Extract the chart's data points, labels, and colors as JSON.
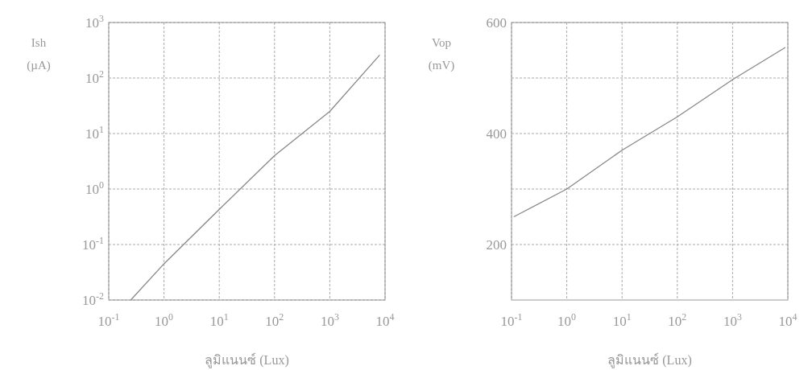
{
  "chart_data": [
    {
      "type": "line",
      "xlabel": "ลูมิแนนซ์ (Lux)",
      "ylabel": "Ish (µA)",
      "log": "xy",
      "grid": true,
      "line_style": "solid",
      "marker": "none",
      "x": [
        0.25,
        1,
        10,
        100,
        1000,
        8000
      ],
      "series": [
        {
          "color": "#888888",
          "values": [
            0.01,
            0.045,
            0.43,
            4,
            25,
            260
          ]
        }
      ],
      "xlim": [
        0.1,
        10000
      ],
      "xticks": [
        {
          "value": 0.1,
          "label": "10$^{-1}$"
        },
        {
          "value": 1,
          "label": "10$^{0}$"
        },
        {
          "value": 10,
          "label": "10$^{1}$"
        },
        {
          "value": 100,
          "label": "10$^{2}$"
        },
        {
          "value": 1000,
          "label": "10$^{3}$"
        },
        {
          "value": 10000,
          "label": "10$^{4}$"
        }
      ],
      "ylim": [
        0.01,
        1000
      ],
      "yticks": [
        {
          "value": 0.01,
          "label": "10$^{-2}$"
        },
        {
          "value": 0.1,
          "label": "10$^{-1}$"
        },
        {
          "value": 1,
          "label": "10$^{0}$"
        },
        {
          "value": 10,
          "label": "10$^{1}$"
        },
        {
          "value": 100,
          "label": "10$^{2}$"
        },
        {
          "value": 1000,
          "label": "10$^{3}$"
        }
      ]
    },
    {
      "type": "line",
      "xlabel": "ลูมิแนนซ์ (Lux)",
      "ylabel": "Vop (mV)",
      "log": "x",
      "grid": true,
      "line_style": "solid",
      "marker": "none",
      "x": [
        0.11,
        1,
        10,
        100,
        1000,
        9000
      ],
      "series": [
        {
          "color": "#888888",
          "values": [
            250,
            300,
            370,
            430,
            497,
            555
          ]
        }
      ],
      "xlim": [
        0.1,
        10000
      ],
      "xticks": [
        {
          "value": 0.1,
          "label": "10$^{-1}$"
        },
        {
          "value": 1,
          "label": "10$^{0}$"
        },
        {
          "value": 10,
          "label": "10$^{1}$"
        },
        {
          "value": 100,
          "label": "10$^{2}$"
        },
        {
          "value": 1000,
          "label": "10$^{3}$"
        },
        {
          "value": 10000,
          "label": "10$^{4}$"
        }
      ],
      "ylim": [
        100,
        600
      ],
      "yticks": [
        {
          "value": 200,
          "label": "200"
        },
        {
          "value": 300,
          "label": null
        },
        {
          "value": 400,
          "label": "400"
        },
        {
          "value": 500,
          "label": null
        },
        {
          "value": 600,
          "label": "600"
        }
      ]
    }
  ]
}
